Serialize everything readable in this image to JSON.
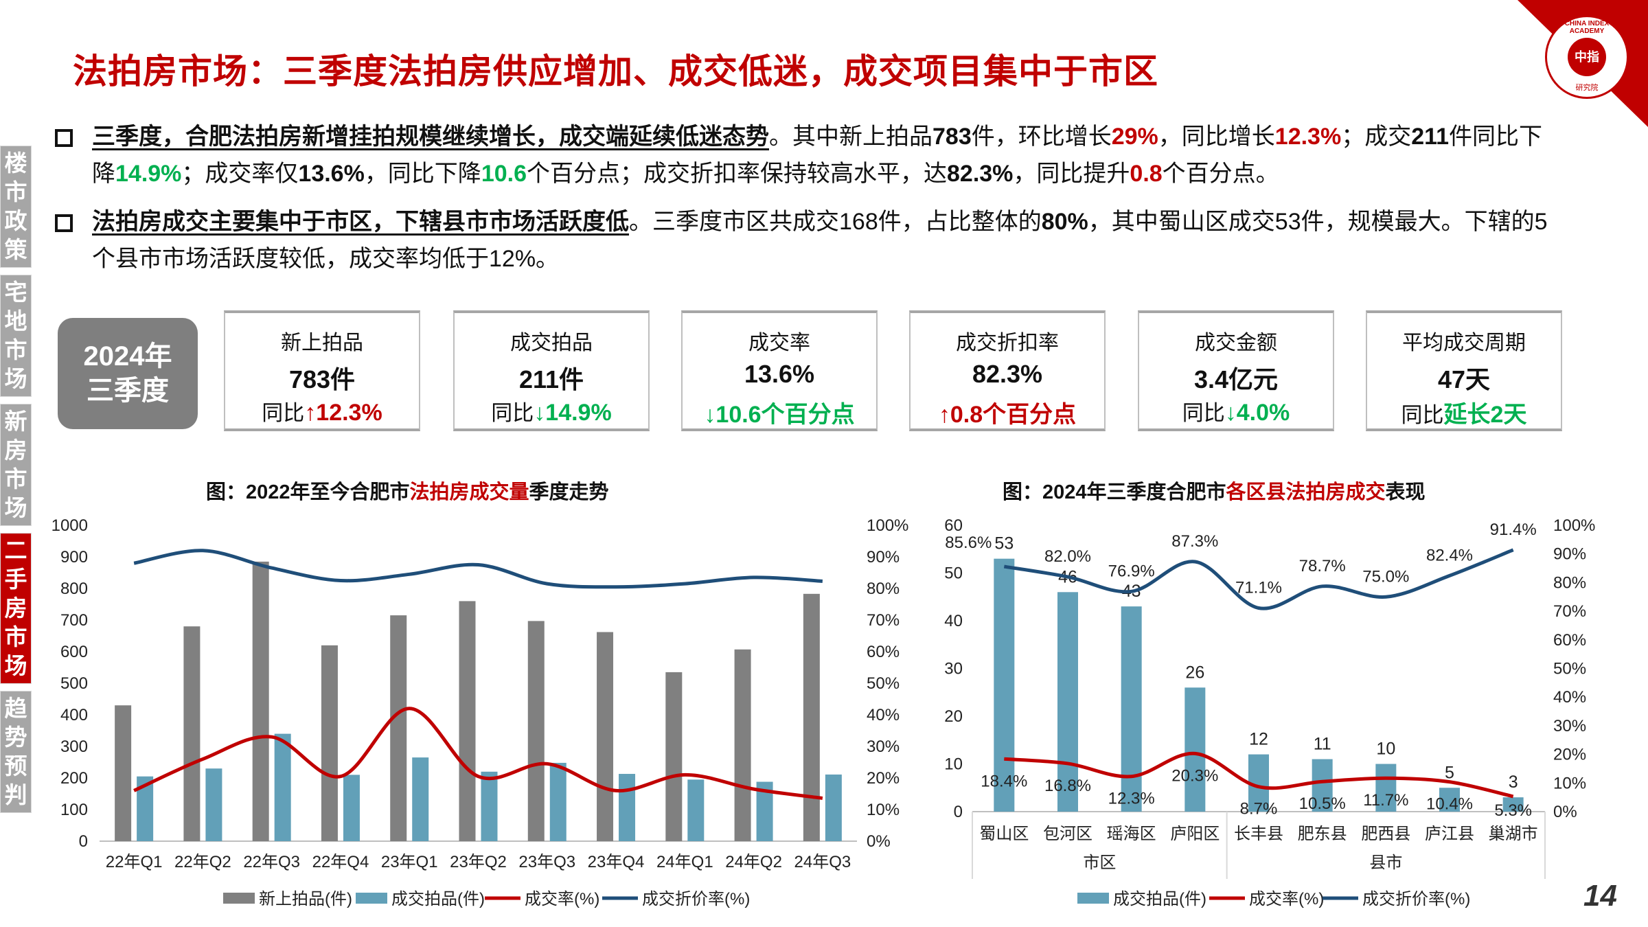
{
  "title": "法拍房市场：三季度法拍房供应增加、成交低迷，成交项目集中于市区",
  "logo": {
    "ring_text": "CHINA INDEX ACADEMY",
    "center_text": "中指",
    "bottom_text": "研究院"
  },
  "sidebar": {
    "items": [
      {
        "label": "楼市政策",
        "active": false
      },
      {
        "label": "宅地市场",
        "active": false
      },
      {
        "label": "新房市场",
        "active": false
      },
      {
        "label": "二手房市场",
        "active": true
      },
      {
        "label": "趋势预判",
        "active": false
      }
    ]
  },
  "bullets": [
    {
      "segments": [
        {
          "t": "三季度，合肥法拍房新增挂拍规模继续增长，成交端延续低迷态势",
          "s": "lead"
        },
        {
          "t": "。其中新上拍品",
          "s": ""
        },
        {
          "t": "783",
          "s": "b"
        },
        {
          "t": "件，环比增长",
          "s": ""
        },
        {
          "t": "29%",
          "s": "red"
        },
        {
          "t": "，同比增长",
          "s": ""
        },
        {
          "t": "12.3%",
          "s": "red"
        },
        {
          "t": "；成交",
          "s": ""
        },
        {
          "t": "211",
          "s": "b"
        },
        {
          "t": "件同比下降",
          "s": ""
        },
        {
          "t": "14.9%",
          "s": "green"
        },
        {
          "t": "；成交率仅",
          "s": ""
        },
        {
          "t": "13.6%",
          "s": "b"
        },
        {
          "t": "，同比下降",
          "s": ""
        },
        {
          "t": "10.6",
          "s": "green"
        },
        {
          "t": "个百分点；成交折扣率保持较高水平，达",
          "s": ""
        },
        {
          "t": "82.3%",
          "s": "b"
        },
        {
          "t": "，同比提升",
          "s": ""
        },
        {
          "t": "0.8",
          "s": "red"
        },
        {
          "t": "个百分点。",
          "s": ""
        }
      ]
    },
    {
      "segments": [
        {
          "t": "法拍房成交主要集中于市区，下辖县市市场活跃度低",
          "s": "lead"
        },
        {
          "t": "。三季度市区共成交168件，占比整体的",
          "s": ""
        },
        {
          "t": "80%",
          "s": "b"
        },
        {
          "t": "，其中蜀山区成交53件，规模最大。下辖的5个县市市场活跃度较低，成交率均低于12%。",
          "s": ""
        }
      ]
    }
  ],
  "badge": {
    "line1": "2024年",
    "line2": "三季度"
  },
  "kpis": [
    {
      "label": "新上拍品",
      "value": "783件",
      "prefix": "同比",
      "arrow": "↑",
      "change": "12.3%",
      "dir": "up"
    },
    {
      "label": "成交拍品",
      "value": "211件",
      "prefix": "同比",
      "arrow": "↓",
      "change": "14.9%",
      "dir": "down"
    },
    {
      "label": "成交率",
      "value": "13.6%",
      "prefix": "",
      "arrow": "↓",
      "change": "10.6个百分点",
      "dir": "down"
    },
    {
      "label": "成交折扣率",
      "value": "82.3%",
      "prefix": "",
      "arrow": "↑",
      "change": "0.8个百分点",
      "dir": "up"
    },
    {
      "label": "成交金额",
      "value": "3.4亿元",
      "prefix": "同比",
      "arrow": "↓",
      "change": "4.0%",
      "dir": "down"
    },
    {
      "label": "平均成交周期",
      "value": "47天",
      "prefix": "同比",
      "arrow": "",
      "change": "延长2天",
      "dir": "down"
    }
  ],
  "colors": {
    "red": "#c00000",
    "green": "#00b050",
    "gray_bar": "#808080",
    "blue_bar": "#62a0b8",
    "navy_line": "#1f4e79"
  },
  "page_number": "14",
  "chart_data": [
    {
      "type": "bar",
      "title_pre": "图：2022年至今合肥市",
      "title_hl": "法拍房成交量",
      "title_post": "季度走势",
      "categories": [
        "22年Q1",
        "22年Q2",
        "22年Q3",
        "22年Q4",
        "23年Q1",
        "23年Q2",
        "23年Q3",
        "23年Q4",
        "24年Q1",
        "24年Q2",
        "24年Q3"
      ],
      "ylim": [
        0,
        1000
      ],
      "yticks": [
        "0",
        "100",
        "200",
        "300",
        "400",
        "500",
        "600",
        "700",
        "800",
        "900",
        "1000"
      ],
      "y2lim": [
        0,
        100
      ],
      "y2ticks": [
        "0%",
        "10%",
        "20%",
        "30%",
        "40%",
        "50%",
        "60%",
        "70%",
        "80%",
        "90%",
        "100%"
      ],
      "series": [
        {
          "name": "新上拍品(件)",
          "kind": "bar",
          "axis": "left",
          "values": [
            430,
            680,
            885,
            620,
            715,
            760,
            697,
            662,
            535,
            607,
            783
          ]
        },
        {
          "name": "成交拍品(件)",
          "kind": "bar",
          "axis": "left",
          "values": [
            205,
            230,
            340,
            210,
            265,
            220,
            248,
            213,
            195,
            188,
            211
          ]
        },
        {
          "name": "成交率(%)",
          "kind": "line",
          "axis": "right",
          "values": [
            16.0,
            26.0,
            33.0,
            20.5,
            42.0,
            20.5,
            24.5,
            16.0,
            21.0,
            16.5,
            13.6
          ]
        },
        {
          "name": "成交折价率(%)",
          "kind": "line",
          "axis": "right",
          "values": [
            88.0,
            92.0,
            86.5,
            82.5,
            84.5,
            87.5,
            81.5,
            80.5,
            81.5,
            83.5,
            82.3
          ]
        }
      ],
      "legend": "bottom"
    },
    {
      "type": "bar",
      "title_pre": "图：2024年三季度合肥市",
      "title_hl": "各区县法拍房成交",
      "title_post": "表现",
      "categories": [
        "蜀山区",
        "包河区",
        "瑶海区",
        "庐阳区",
        "长丰县",
        "肥东县",
        "肥西县",
        "庐江县",
        "巢湖市"
      ],
      "groups": [
        {
          "label": "市区",
          "count": 4
        },
        {
          "label": "县市",
          "count": 5
        }
      ],
      "ylim": [
        0,
        60
      ],
      "yticks": [
        "0",
        "10",
        "20",
        "30",
        "40",
        "50",
        "60"
      ],
      "y2lim": [
        0,
        100
      ],
      "y2ticks": [
        "0%",
        "10%",
        "20%",
        "30%",
        "40%",
        "50%",
        "60%",
        "70%",
        "80%",
        "90%",
        "100%"
      ],
      "series": [
        {
          "name": "成交拍品(件)",
          "kind": "bar",
          "axis": "left",
          "values": [
            53,
            46,
            43,
            26,
            12,
            11,
            10,
            5,
            3
          ],
          "labels": [
            "53",
            "46",
            "43",
            "26",
            "12",
            "11",
            "10",
            "5",
            "3"
          ]
        },
        {
          "name": "成交率(%)",
          "kind": "line",
          "axis": "right",
          "values": [
            18.4,
            16.8,
            12.3,
            20.3,
            8.7,
            10.5,
            11.7,
            10.4,
            5.3
          ],
          "labels": [
            "18.4%",
            "16.8%",
            "12.3%",
            "20.3%",
            "8.7%",
            "10.5%",
            "11.7%",
            "10.4%",
            "5.3%"
          ]
        },
        {
          "name": "成交折价率(%)",
          "kind": "line",
          "axis": "right",
          "values": [
            85.6,
            82.0,
            76.9,
            87.3,
            71.1,
            78.7,
            75.0,
            82.4,
            91.4
          ],
          "labels": [
            "85.6%",
            "82.0%",
            "76.9%",
            "87.3%",
            "71.1%",
            "78.7%",
            "75.0%",
            "82.4%",
            "91.4%"
          ]
        }
      ],
      "legend": "bottom"
    }
  ]
}
